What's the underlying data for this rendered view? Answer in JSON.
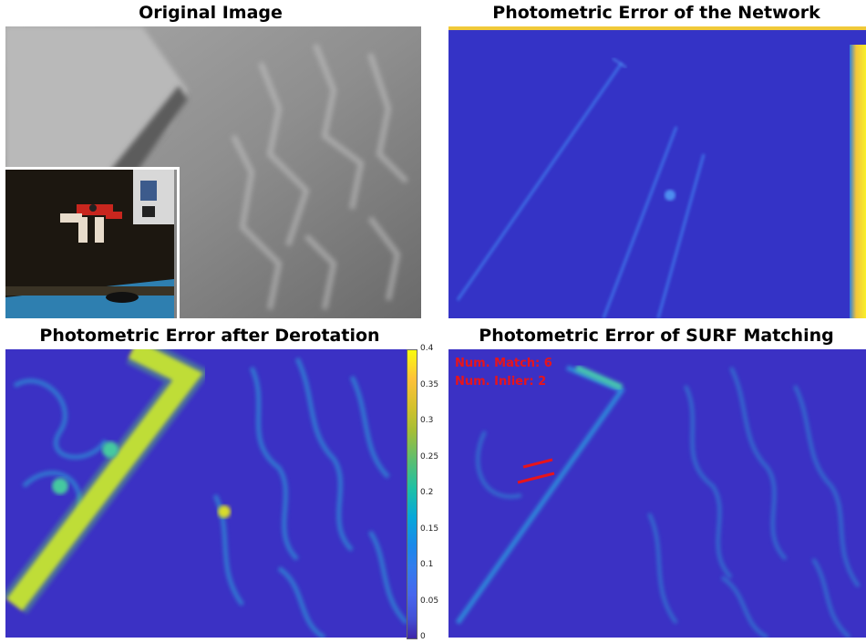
{
  "panels": {
    "original": {
      "title": "Original Image"
    },
    "network": {
      "title": "Photometric Error of the Network"
    },
    "derotation": {
      "title": "Photometric Error after Derotation"
    },
    "surf": {
      "title": "Photometric Error of SURF Matching",
      "num_match": "Num. Match: 6",
      "num_inlier": "Num. Inlier: 2"
    }
  },
  "colorbar": {
    "ticks": [
      "0.4",
      "0.35",
      "0.3",
      "0.25",
      "0.2",
      "0.15",
      "0.1",
      "0.05",
      "0"
    ],
    "min_color": "#3e26a8",
    "max_color": "#f9fb0e"
  },
  "colors": {
    "error_low": "#3e2fc8",
    "error_mid": "#2a8fd8",
    "error_high": "#f2e21c",
    "match_line": "#e8141b"
  }
}
